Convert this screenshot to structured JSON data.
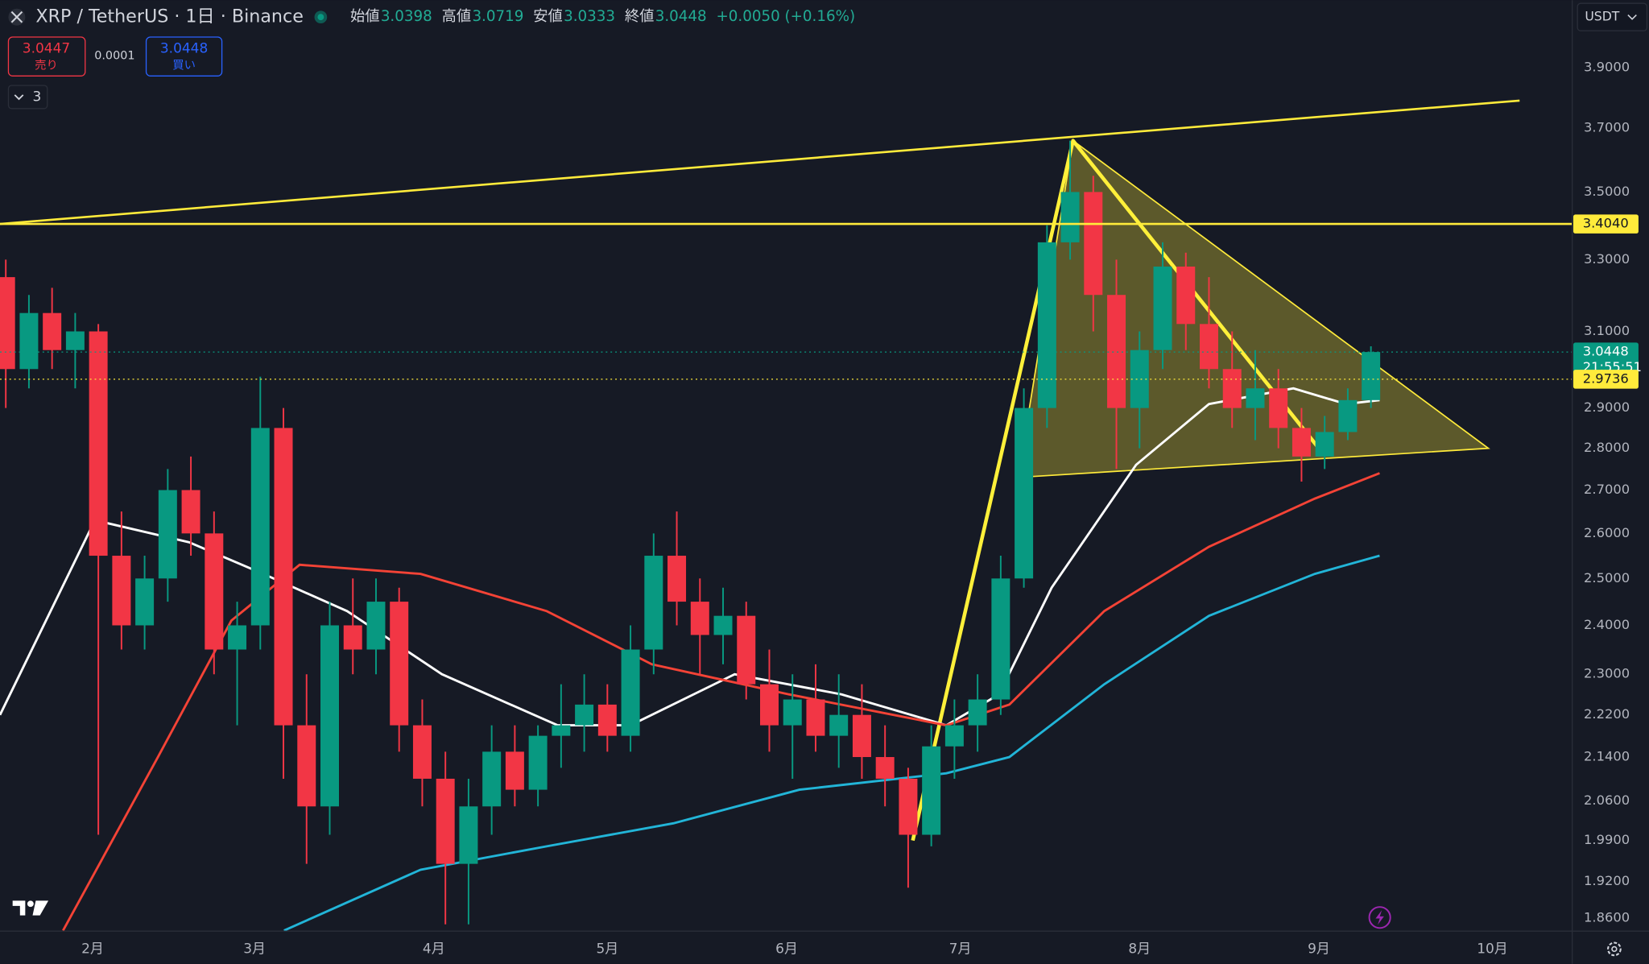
{
  "header": {
    "title": "XRP / TetherUS · 1日 · Binance",
    "open_label": "始値",
    "open": 3.0398,
    "high_label": "高値",
    "high": 3.0719,
    "low_label": "安値",
    "low": 3.0333,
    "close_label": "終値",
    "close": 3.0448,
    "change": "+0.0050 (+0.16%)",
    "sell_price": 3.0447,
    "sell_label": "売り",
    "spread": 0.0001,
    "buy_price": 3.0448,
    "buy_label": "買い",
    "indicator_count": 3,
    "currency": "USDT"
  },
  "chart_data": {
    "type": "candlestick",
    "x": [
      16,
      20,
      24,
      28,
      32,
      36,
      40,
      44,
      48,
      52,
      56,
      60,
      64,
      68,
      72,
      76,
      80,
      84,
      88,
      92,
      96,
      100,
      104,
      108,
      112,
      116,
      120,
      124,
      128,
      132,
      136,
      140,
      144,
      148,
      152,
      156,
      160,
      164,
      168,
      172,
      176,
      180,
      184,
      188,
      192,
      196,
      200,
      204,
      208,
      212,
      216,
      220,
      224,
      228,
      232,
      236,
      240,
      244,
      248,
      252
    ],
    "open": [
      3.25,
      3.0,
      3.15,
      3.05,
      3.1,
      2.55,
      2.4,
      2.5,
      2.7,
      2.6,
      2.35,
      2.4,
      2.85,
      2.2,
      2.05,
      2.4,
      2.35,
      2.45,
      2.2,
      2.1,
      1.95,
      2.05,
      2.15,
      2.08,
      2.18,
      2.2,
      2.24,
      2.18,
      2.35,
      2.55,
      2.45,
      2.38,
      2.42,
      2.28,
      2.2,
      2.25,
      2.18,
      2.22,
      2.14,
      2.1,
      2.0,
      2.16,
      2.2,
      2.25,
      2.5,
      2.9,
      3.35,
      3.5,
      3.2,
      2.9,
      3.05,
      3.28,
      3.12,
      3.0,
      2.9,
      2.95,
      2.85,
      2.78,
      2.84,
      2.92
    ],
    "high": [
      3.3,
      3.2,
      3.22,
      3.15,
      3.12,
      2.65,
      2.55,
      2.75,
      2.78,
      2.65,
      2.45,
      2.98,
      2.9,
      2.3,
      2.45,
      2.5,
      2.5,
      2.48,
      2.25,
      2.15,
      2.1,
      2.2,
      2.2,
      2.2,
      2.28,
      2.3,
      2.28,
      2.4,
      2.6,
      2.65,
      2.5,
      2.48,
      2.45,
      2.35,
      2.3,
      2.32,
      2.3,
      2.28,
      2.2,
      2.12,
      2.2,
      2.25,
      2.3,
      2.55,
      2.95,
      3.4,
      3.66,
      3.55,
      3.3,
      3.1,
      3.35,
      3.32,
      3.25,
      3.1,
      3.05,
      3.0,
      2.9,
      2.88,
      2.95,
      3.06
    ],
    "low": [
      2.9,
      2.95,
      3.0,
      2.95,
      2.0,
      2.35,
      2.35,
      2.45,
      2.55,
      2.3,
      2.2,
      2.35,
      2.1,
      1.95,
      2.0,
      2.3,
      2.3,
      2.15,
      2.05,
      1.85,
      1.85,
      2.0,
      2.05,
      2.05,
      2.12,
      2.15,
      2.15,
      2.15,
      2.3,
      2.4,
      2.3,
      2.32,
      2.25,
      2.15,
      2.1,
      2.15,
      2.12,
      2.1,
      2.05,
      1.91,
      1.98,
      2.1,
      2.15,
      2.22,
      2.48,
      2.85,
      3.3,
      3.1,
      2.75,
      2.8,
      3.0,
      3.05,
      2.95,
      2.85,
      2.82,
      2.8,
      2.72,
      2.75,
      2.82,
      2.9
    ],
    "close": [
      3.0,
      3.15,
      3.05,
      3.1,
      2.55,
      2.4,
      2.5,
      2.7,
      2.6,
      2.35,
      2.4,
      2.85,
      2.2,
      2.05,
      2.4,
      2.35,
      2.45,
      2.2,
      2.1,
      1.95,
      2.05,
      2.15,
      2.08,
      2.18,
      2.2,
      2.24,
      2.18,
      2.35,
      2.55,
      2.45,
      2.38,
      2.42,
      2.28,
      2.2,
      2.25,
      2.18,
      2.22,
      2.14,
      2.1,
      2.0,
      2.16,
      2.2,
      2.25,
      2.5,
      2.9,
      3.35,
      3.5,
      3.2,
      2.9,
      3.05,
      3.28,
      3.12,
      3.0,
      2.9,
      2.95,
      2.85,
      2.78,
      2.84,
      2.92,
      3.0448
    ],
    "up_color": "#089981",
    "down_color": "#f23645",
    "xlim": [
      15,
      286.8
    ],
    "xticks": [
      {
        "value": 31,
        "label": "2月"
      },
      {
        "value": 59,
        "label": "3月"
      },
      {
        "value": 90,
        "label": "4月"
      },
      {
        "value": 120,
        "label": "5月"
      },
      {
        "value": 151,
        "label": "6月"
      },
      {
        "value": 181,
        "label": "7月"
      },
      {
        "value": 212,
        "label": "8月"
      },
      {
        "value": 243,
        "label": "9月"
      },
      {
        "value": 273,
        "label": "10月"
      }
    ],
    "ylim": [
      1.839,
      4.136
    ],
    "yscale": "log",
    "yticks": [
      {
        "value": 3.9,
        "label": "3.9000"
      },
      {
        "value": 3.7,
        "label": "3.7000"
      },
      {
        "value": 3.5,
        "label": "3.5000"
      },
      {
        "value": 3.3,
        "label": "3.3000"
      },
      {
        "value": 3.1,
        "label": "3.1000"
      },
      {
        "value": 2.9,
        "label": "2.9000"
      },
      {
        "value": 2.8,
        "label": "2.8000"
      },
      {
        "value": 2.7,
        "label": "2.7000"
      },
      {
        "value": 2.6,
        "label": "2.6000"
      },
      {
        "value": 2.5,
        "label": "2.5000"
      },
      {
        "value": 2.4,
        "label": "2.4000"
      },
      {
        "value": 2.3,
        "label": "2.3000"
      },
      {
        "value": 2.22,
        "label": "2.2200"
      },
      {
        "value": 2.14,
        "label": "2.1400"
      },
      {
        "value": 2.06,
        "label": "2.0600"
      },
      {
        "value": 1.99,
        "label": "1.9900"
      },
      {
        "value": 1.92,
        "label": "1.9200"
      },
      {
        "value": 1.86,
        "label": "1.8600"
      }
    ],
    "lines": [
      {
        "color": "#ffffff",
        "x": [
          15,
          31.4,
          47.7,
          60.5,
          75,
          91.4,
          111.4,
          124,
          142,
          160.5,
          178.6,
          187.7,
          196.8,
          211.4,
          224,
          238.6,
          247.7,
          253.5
        ],
        "values": [
          2.22,
          2.63,
          2.58,
          2.51,
          2.43,
          2.3,
          2.2,
          2.2,
          2.3,
          2.26,
          2.2,
          2.26,
          2.48,
          2.76,
          2.91,
          2.95,
          2.91,
          2.92
        ]
      },
      {
        "color": "#f44336",
        "x": [
          25.9,
          42.3,
          55,
          66.8,
          87.7,
          109.5,
          127.7,
          151.4,
          178.6,
          189.5,
          205.9,
          224,
          242.3,
          253.5
        ],
        "values": [
          1.84,
          2.14,
          2.41,
          2.53,
          2.51,
          2.43,
          2.32,
          2.26,
          2.2,
          2.24,
          2.43,
          2.57,
          2.68,
          2.74
        ]
      },
      {
        "color": "#22b5d8",
        "x": [
          64.1,
          87.7,
          109.5,
          131.4,
          153.2,
          178.6,
          189.5,
          205.9,
          224,
          242.3,
          253.5
        ],
        "values": [
          1.84,
          1.94,
          1.98,
          2.02,
          2.08,
          2.11,
          2.14,
          2.28,
          2.42,
          2.51,
          2.55
        ]
      }
    ],
    "drawings": [
      {
        "color": "#ffeb3b",
        "x": [
          191,
          200.5,
          272.3
        ],
        "values": [
          2.73,
          3.66,
          2.8
        ],
        "fill": "#ffeb3b"
      },
      {
        "color": "#ffeb3b",
        "x": [
          15,
          277.7
        ],
        "values": [
          3.404,
          3.79
        ]
      },
      {
        "color": "#fff03a",
        "x": [
          172.8,
          200.5,
          243
        ],
        "values": [
          1.99,
          3.66,
          2.8
        ],
        "thick": true
      }
    ],
    "price_lines": [
      {
        "value": 3.404,
        "label": "3.4040",
        "color": "#ffeb3b",
        "text_color": "#131722",
        "style": "solid"
      },
      {
        "value": 3.0448,
        "color": "#089981",
        "text_color": "#ffffff",
        "style": "dotted",
        "countdown": "21:55:51"
      },
      {
        "value": 2.9736,
        "color": "#ffeb3b",
        "text_color": "#131722",
        "style": "dotted"
      }
    ]
  }
}
